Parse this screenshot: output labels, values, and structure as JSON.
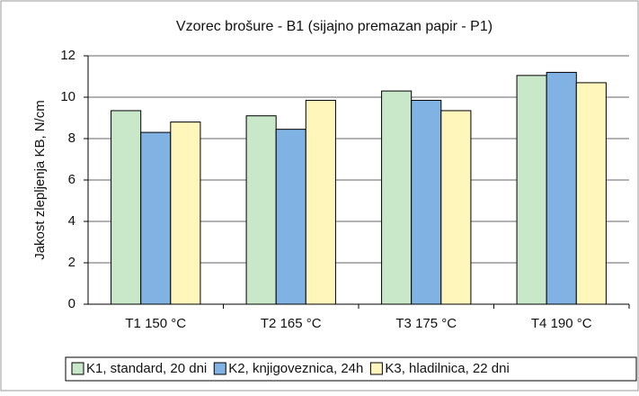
{
  "chart_data": {
    "type": "bar",
    "title": "Vzorec brošure - B1 (sijajno premazan papir - P1)",
    "y_label": "Jakost zlepljenja KB, N/cm",
    "categories": [
      "T1 150 °C",
      "T2 165 °C",
      "T3 175 °C",
      "T4 190 °C"
    ],
    "series": [
      {
        "name": "K1, standard, 20 dni",
        "color": "#c9e8c9",
        "values": [
          9.35,
          9.1,
          10.3,
          11.05
        ]
      },
      {
        "name": "K2, knjigoveznica, 24h",
        "color": "#80b3e3",
        "values": [
          8.3,
          8.45,
          9.85,
          11.2
        ]
      },
      {
        "name": "K3, hladilnica, 22 dni",
        "color": "#fff6bc",
        "values": [
          8.8,
          9.85,
          9.35,
          10.7
        ]
      }
    ],
    "ylim": [
      0,
      12
    ],
    "yticks": [
      0,
      2,
      4,
      6,
      8,
      10,
      12
    ],
    "grid": true,
    "legend": "bottom"
  }
}
